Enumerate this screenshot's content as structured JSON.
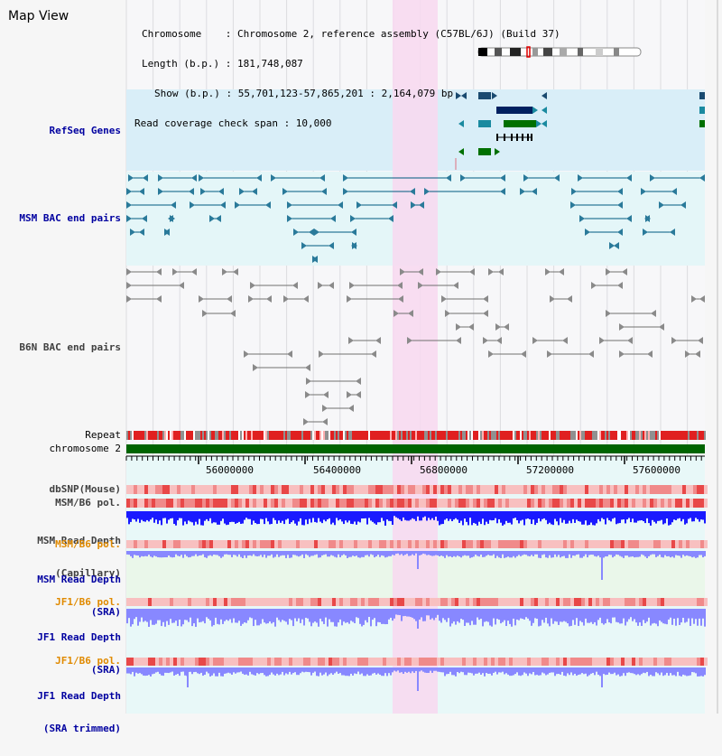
{
  "window": {
    "title": "Map View"
  },
  "info": {
    "chromosome": "Chromosome    : Chromosome 2, reference assembly (C57BL/6J) (Build 37)",
    "length": "Length (b.p.) : 181,748,087",
    "show": "Show (b.p.) : 55,701,123-57,865,201 : 2,164,079 bp",
    "coverage": "Read coverage check span : 10,000"
  },
  "tracks": {
    "refseq": "RefSeq Genes",
    "msm_bac": "MSM BAC end pairs",
    "b6n_bac": "B6N BAC end pairs",
    "repeat": "Repeat",
    "chromosome": "chromosome 2",
    "dbsnp": "dbSNP(Mouse)",
    "msm_b6_pol_1": "MSM/B6 pol.",
    "msm_read_depth_cap_1": "MSM Read Depth",
    "msm_read_depth_cap_2": "(Capillary)",
    "msm_b6_pol_2": "MSM/B6 pol.",
    "msm_read_depth_sra_1": "MSM Read Depth",
    "msm_read_depth_sra_2": "(SRA)",
    "jf1_b6_pol_1": "JF1/B6 pol.",
    "jf1_read_depth_sra_1": "JF1 Read Depth",
    "jf1_read_depth_sra_2": "(SRA)",
    "jf1_b6_pol_2": "JF1/B6 pol.",
    "jf1_read_depth_trim_1": "JF1 Read Depth",
    "jf1_read_depth_trim_2": "(SRA trimmed)"
  },
  "axis": {
    "ticks": [
      "56000000",
      "56400000",
      "56800000",
      "57200000",
      "57600000"
    ]
  },
  "colors": {
    "highlight": "#f8d8f0",
    "refseq_bg": "#d9eef8",
    "msm_bg": "#e4f6f8",
    "b6n_bg": "#f3f3f6",
    "gene_dark": "#002060",
    "gene_green": "#007000",
    "bac_line": "#005a80",
    "chrom_bar": "#006400",
    "depth_blue": "#1a1aff",
    "depth_light": "#8888ff"
  }
}
